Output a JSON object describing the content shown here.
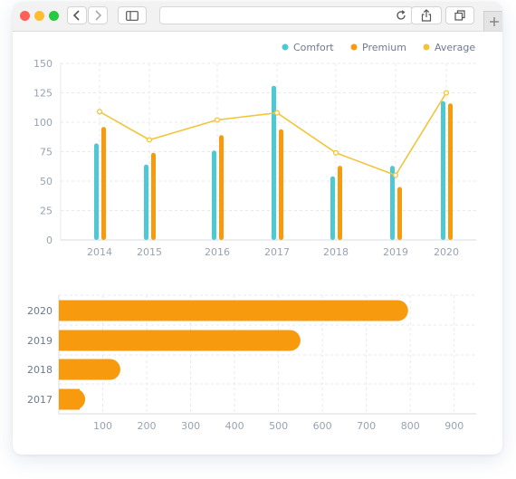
{
  "icons": {
    "back": "chevron-left-icon",
    "forward": "chevron-right-icon",
    "sidebar": "sidebar-icon",
    "reload": "reload-icon",
    "share": "share-icon",
    "tabs": "tabs-icon",
    "new_tab": "plus-icon"
  },
  "colors": {
    "comfort": "#4ec9d4",
    "premium": "#f79a0e",
    "average": "#f2c43a",
    "grid": "#e6e9ef",
    "axis_text": "#98a2b3"
  },
  "chart_data": [
    {
      "type": "bar",
      "categories": [
        "2014",
        "2015",
        "2016",
        "2017",
        "2018",
        "2019",
        "2020"
      ],
      "series": [
        {
          "name": "Comfort",
          "type": "bar",
          "values": [
            82,
            64,
            76,
            131,
            54,
            63,
            118
          ]
        },
        {
          "name": "Premium",
          "type": "bar",
          "values": [
            96,
            74,
            89,
            94,
            63,
            45,
            116
          ]
        },
        {
          "name": "Average",
          "type": "line",
          "values": [
            109,
            85,
            102,
            108,
            74,
            55,
            125
          ]
        }
      ],
      "ylim": [
        0,
        150
      ],
      "yticks": [
        "0",
        "25",
        "50",
        "75",
        "100",
        "125",
        "150"
      ],
      "legend_position": "top-right",
      "grid": true
    },
    {
      "type": "bar",
      "orientation": "horizontal",
      "categories": [
        "2017",
        "2018",
        "2019",
        "2020"
      ],
      "values": [
        60,
        140,
        550,
        795
      ],
      "xlim": [
        0,
        950
      ],
      "xticks": [
        "100",
        "200",
        "300",
        "400",
        "500",
        "600",
        "700",
        "800",
        "900"
      ],
      "grid": true
    }
  ]
}
